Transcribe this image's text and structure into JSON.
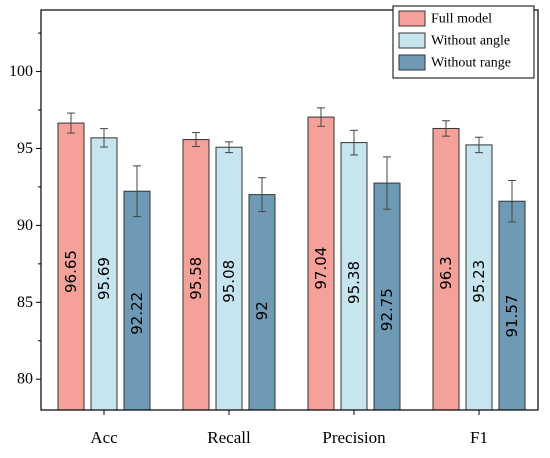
{
  "chart_data": {
    "type": "bar",
    "title": "",
    "xlabel": "",
    "ylabel": "",
    "categories": [
      "Acc",
      "Recall",
      "Precision",
      "F1"
    ],
    "ylim": [
      78,
      104
    ],
    "yticks": [
      80,
      85,
      90,
      95,
      100
    ],
    "grid": false,
    "legend_position": "top-right",
    "series": [
      {
        "name": "Full model",
        "color": "#f4a19a",
        "values": [
          96.65,
          95.58,
          97.04,
          96.3
        ],
        "value_labels": [
          "96.65",
          "95.58",
          "97.04",
          "96.3"
        ],
        "errors": [
          0.65,
          0.45,
          0.6,
          0.5
        ]
      },
      {
        "name": "Without angle",
        "color": "#c7e5ee",
        "values": [
          95.69,
          95.08,
          95.38,
          95.23
        ],
        "value_labels": [
          "95.69",
          "95.08",
          "95.38",
          "95.23"
        ],
        "errors": [
          0.6,
          0.35,
          0.8,
          0.5
        ]
      },
      {
        "name": "Without range",
        "color": "#6e9ab6",
        "values": [
          92.22,
          92.0,
          92.75,
          91.57
        ],
        "value_labels": [
          "92.22",
          "92",
          "92.75",
          "91.57"
        ],
        "errors": [
          1.65,
          1.1,
          1.7,
          1.35
        ]
      }
    ]
  }
}
